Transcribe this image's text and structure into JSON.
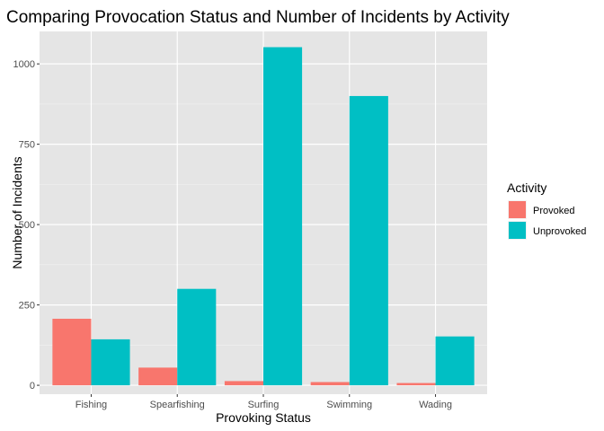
{
  "chart_data": {
    "type": "bar",
    "title": "Comparing Provocation Status and Number of Incidents by Activity",
    "xlabel": "Provoking Status",
    "ylabel": "Number of Incidents",
    "categories": [
      "Fishing",
      "Spearfishing",
      "Surfing",
      "Swimming",
      "Wading"
    ],
    "series": [
      {
        "name": "Provoked",
        "color": "#F8766D",
        "values": [
          207,
          55,
          13,
          10,
          7
        ]
      },
      {
        "name": "Unprovoked",
        "color": "#00BFC4",
        "values": [
          143,
          300,
          1052,
          900,
          152
        ]
      }
    ],
    "ylim": [
      -27.7,
      1101
    ],
    "yticks": [
      0,
      250,
      500,
      750,
      1000
    ],
    "legend": {
      "title": "Activity",
      "position": "right"
    },
    "grid": true,
    "panel_background": "#E5E5E5"
  }
}
